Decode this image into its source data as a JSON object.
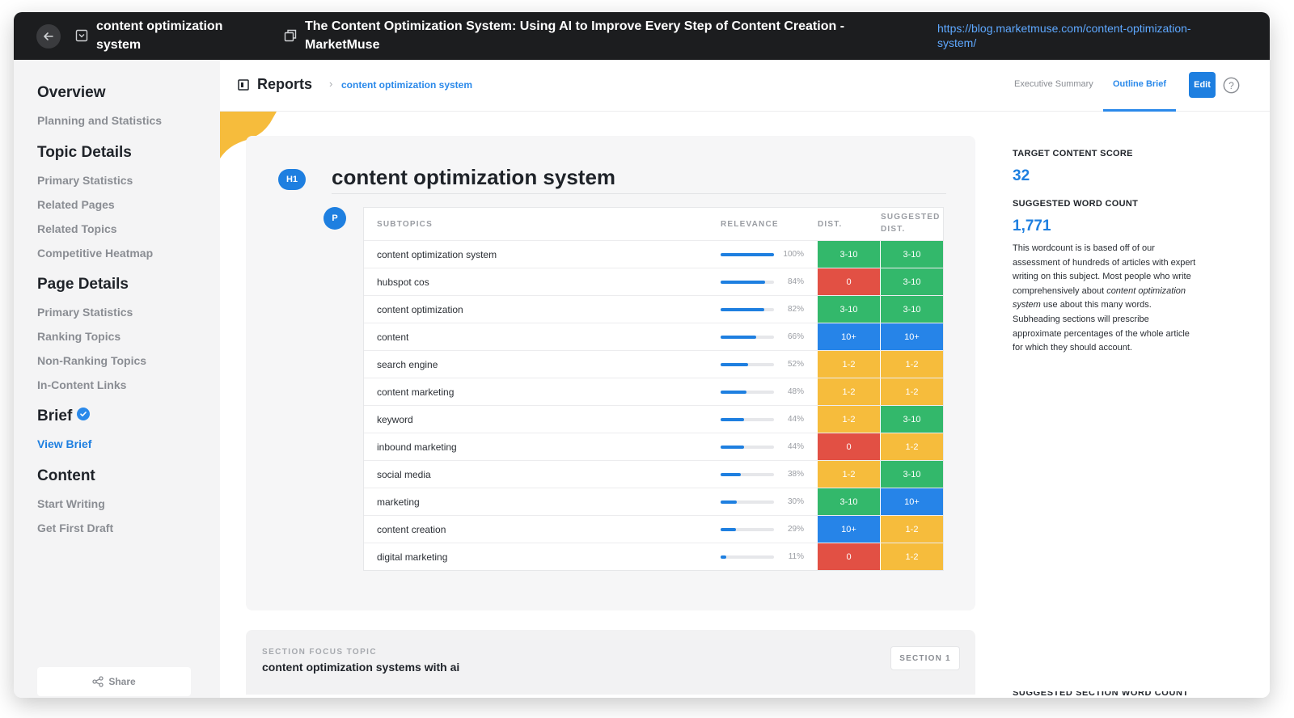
{
  "topbar": {
    "topic_title": "content optimization system",
    "page_title": "The Content Optimization System: Using AI to Improve Every Step of Content Creation - MarketMuse",
    "url": "https://blog.marketmuse.com/content-optimization-system/"
  },
  "sidebar": {
    "groups": [
      {
        "heading": "Overview",
        "items": [
          "Planning and Statistics"
        ]
      },
      {
        "heading": "Topic Details",
        "items": [
          "Primary Statistics",
          "Related Pages",
          "Related Topics",
          "Competitive Heatmap"
        ]
      },
      {
        "heading": "Page Details",
        "items": [
          "Primary Statistics",
          "Ranking Topics",
          "Non-Ranking Topics",
          "In-Content Links"
        ]
      },
      {
        "heading": "Brief",
        "items": [
          "View Brief"
        ]
      },
      {
        "heading": "Content",
        "items": [
          "Start Writing",
          "Get First Draft"
        ]
      }
    ],
    "share_label": "Share"
  },
  "header": {
    "reports_label": "Reports",
    "separator": "›",
    "breadcrumb": "content optimization system",
    "tabs": [
      "Executive Summary",
      "Outline Brief"
    ],
    "active_tab": "Outline Brief",
    "edit_label": "Edit",
    "help_glyph": "?"
  },
  "outline": {
    "h1_badge": "H1",
    "h1_title": "content optimization system",
    "p_badge": "P",
    "columns": {
      "subtopics": "SUBTOPICS",
      "relevance": "RELEVANCE",
      "dist": "DIST.",
      "suggested_dist": "SUGGESTED DIST."
    },
    "rows": [
      {
        "topic": "content optimization system",
        "relevance": 100,
        "relevance_label": "100%",
        "dist": "3-10",
        "dist_status": "green",
        "suggested": "3-10",
        "suggested_status": "green"
      },
      {
        "topic": "hubspot cos",
        "relevance": 84,
        "relevance_label": "84%",
        "dist": "0",
        "dist_status": "red",
        "suggested": "3-10",
        "suggested_status": "green"
      },
      {
        "topic": "content optimization",
        "relevance": 82,
        "relevance_label": "82%",
        "dist": "3-10",
        "dist_status": "green",
        "suggested": "3-10",
        "suggested_status": "green"
      },
      {
        "topic": "content",
        "relevance": 66,
        "relevance_label": "66%",
        "dist": "10+",
        "dist_status": "blue",
        "suggested": "10+",
        "suggested_status": "blue"
      },
      {
        "topic": "search engine",
        "relevance": 52,
        "relevance_label": "52%",
        "dist": "1-2",
        "dist_status": "yellow",
        "suggested": "1-2",
        "suggested_status": "yellow"
      },
      {
        "topic": "content marketing",
        "relevance": 48,
        "relevance_label": "48%",
        "dist": "1-2",
        "dist_status": "yellow",
        "suggested": "1-2",
        "suggested_status": "yellow"
      },
      {
        "topic": "keyword",
        "relevance": 44,
        "relevance_label": "44%",
        "dist": "1-2",
        "dist_status": "yellow",
        "suggested": "3-10",
        "suggested_status": "green"
      },
      {
        "topic": "inbound marketing",
        "relevance": 44,
        "relevance_label": "44%",
        "dist": "0",
        "dist_status": "red",
        "suggested": "1-2",
        "suggested_status": "yellow"
      },
      {
        "topic": "social media",
        "relevance": 38,
        "relevance_label": "38%",
        "dist": "1-2",
        "dist_status": "yellow",
        "suggested": "3-10",
        "suggested_status": "green"
      },
      {
        "topic": "marketing",
        "relevance": 30,
        "relevance_label": "30%",
        "dist": "3-10",
        "dist_status": "green",
        "suggested": "10+",
        "suggested_status": "blue"
      },
      {
        "topic": "content creation",
        "relevance": 29,
        "relevance_label": "29%",
        "dist": "10+",
        "dist_status": "blue",
        "suggested": "1-2",
        "suggested_status": "yellow"
      },
      {
        "topic": "digital marketing",
        "relevance": 11,
        "relevance_label": "11%",
        "dist": "0",
        "dist_status": "red",
        "suggested": "1-2",
        "suggested_status": "yellow"
      }
    ]
  },
  "status_colors": {
    "green": "#33b86b",
    "red": "#e25044",
    "blue": "#2684e8",
    "yellow": "#f6bc3c"
  },
  "section": {
    "label": "SECTION FOCUS TOPIC",
    "title": "content optimization systems with ai",
    "button": "SECTION 1"
  },
  "right_panel": {
    "target_label": "TARGET CONTENT SCORE",
    "target_value": "32",
    "wordcount_label": "SUGGESTED WORD COUNT",
    "wordcount_value": "1,771",
    "desc_before": "This wordcount is is based off of our assessment of hundreds of articles with expert writing on this subject. Most people who write comprehensively about ",
    "desc_topic": "content optimization system",
    "desc_after": " use about this many words. Subheading sections will prescribe approximate percentages of the whole article for which they should account.",
    "cut_label": "SUGGESTED SECTION WORD COUNT"
  }
}
